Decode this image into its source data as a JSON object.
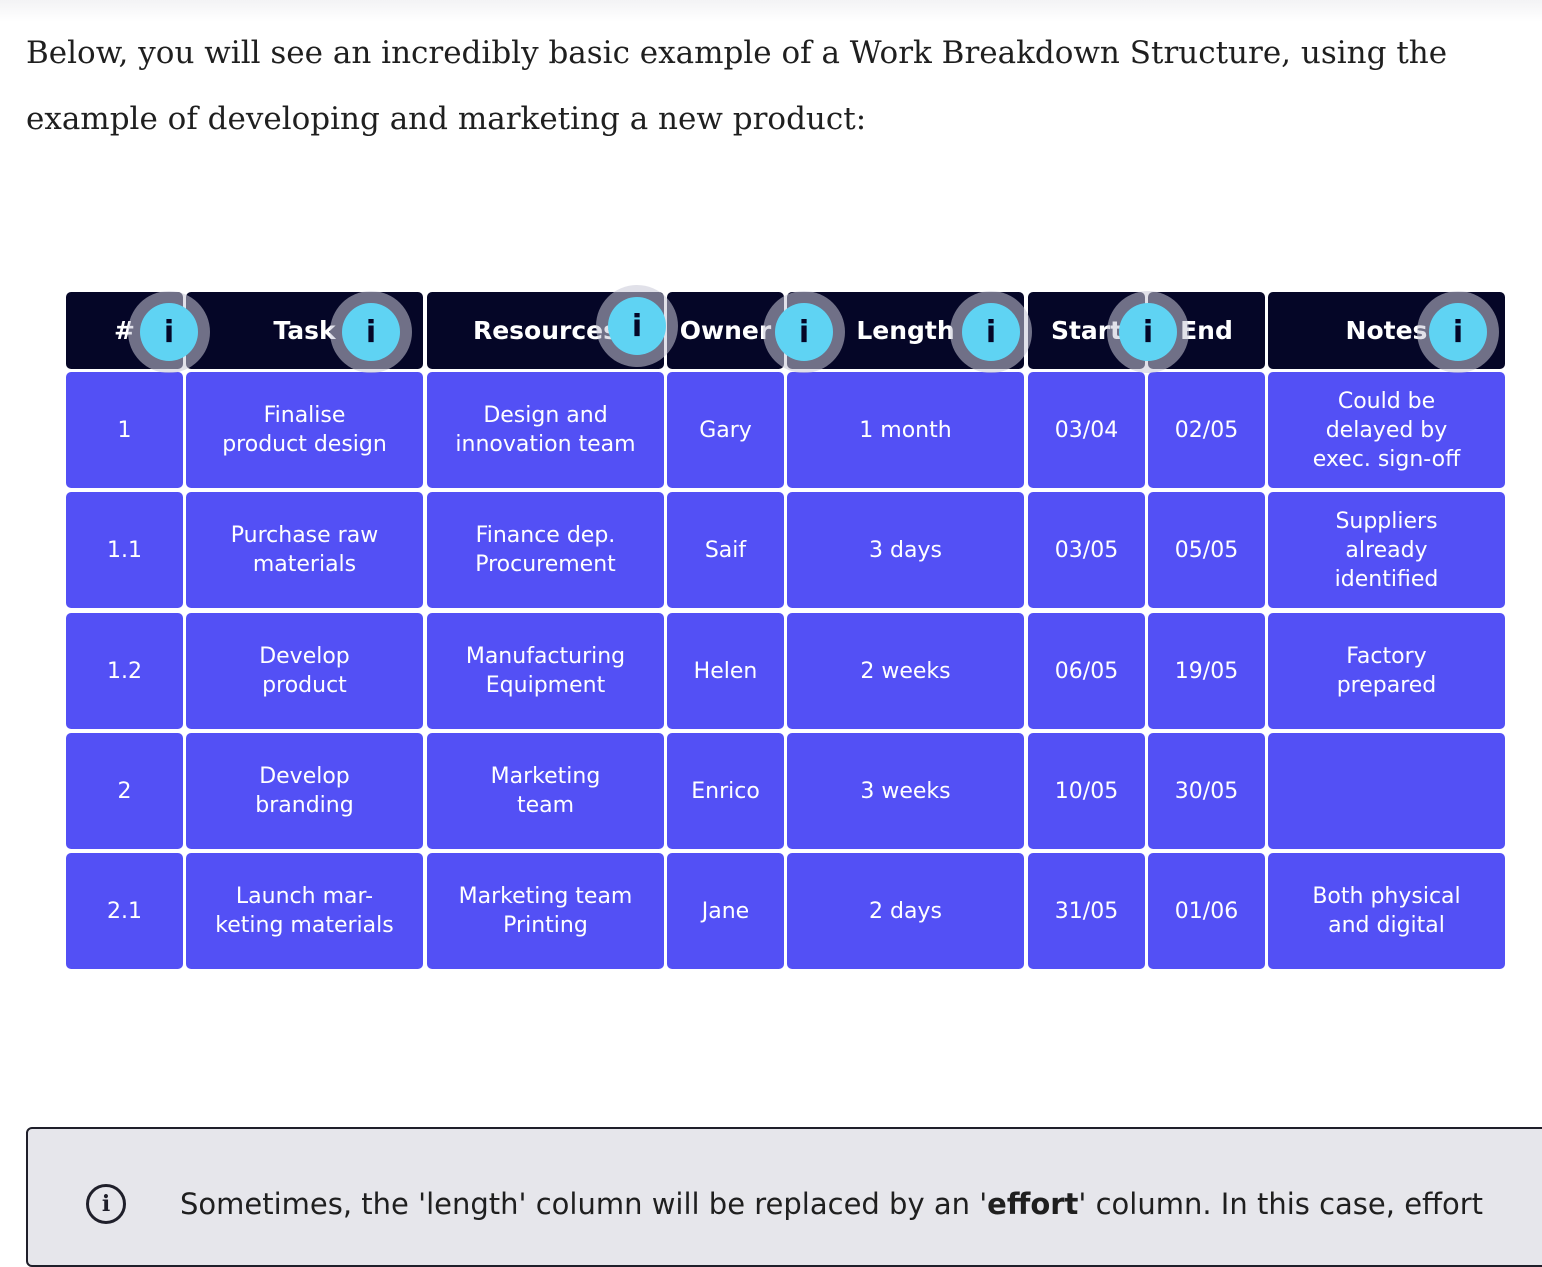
{
  "intro": "Below, you will see an incredibly basic example of a Work Breakdown Structure, using the example of developing and marketing a new product:",
  "wbs_table": {
    "columns": [
      "#",
      "Task",
      "Resources",
      "Owner",
      "Length",
      "Start",
      "End",
      "Notes"
    ],
    "info_icon_glyph": "i",
    "rows": [
      [
        "1",
        "Finalise\nproduct design",
        "Design and\ninnovation team",
        "Gary",
        "1 month",
        "03/04",
        "02/05",
        "Could be\ndelayed by\nexec. sign-off"
      ],
      [
        "1.1",
        "Purchase raw\nmaterials",
        "Finance dep.\nProcurement",
        "Saif",
        "3 days",
        "03/05",
        "05/05",
        "Suppliers\nalready\nidentified"
      ],
      [
        "1.2",
        "Develop\nproduct",
        "Manufacturing\nEquipment",
        "Helen",
        "2 weeks",
        "06/05",
        "19/05",
        "Factory\nprepared"
      ],
      [
        "2",
        "Develop\nbranding",
        "Marketing\nteam",
        "Enrico",
        "3 weeks",
        "10/05",
        "30/05",
        ""
      ],
      [
        "2.1",
        "Launch mar-\nketing materials",
        "Marketing team\nPrinting",
        "Jane",
        "2 days",
        "31/05",
        "01/06",
        "Both physical\nand digital"
      ]
    ],
    "colors": {
      "header_bg": "#050627",
      "cell_bg": "#5350f5",
      "info_icon": "#5fd3f3"
    }
  },
  "callout": {
    "icon": "info-circle-icon",
    "text_before": "Sometimes, the 'length' column will be replaced by an '",
    "text_bold": "effort",
    "text_after": "' column. In this case, effort"
  }
}
